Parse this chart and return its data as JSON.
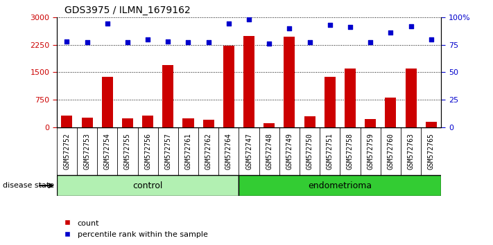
{
  "title": "GDS3975 / ILMN_1679162",
  "samples": [
    "GSM572752",
    "GSM572753",
    "GSM572754",
    "GSM572755",
    "GSM572756",
    "GSM572757",
    "GSM572761",
    "GSM572762",
    "GSM572764",
    "GSM572747",
    "GSM572748",
    "GSM572749",
    "GSM572750",
    "GSM572751",
    "GSM572758",
    "GSM572759",
    "GSM572760",
    "GSM572763",
    "GSM572765"
  ],
  "bar_heights": [
    320,
    260,
    1380,
    250,
    330,
    1700,
    250,
    200,
    2220,
    2480,
    120,
    2470,
    310,
    1370,
    1600,
    230,
    820,
    1600,
    150
  ],
  "dot_percentiles": [
    78,
    77,
    94,
    77,
    80,
    78,
    77,
    77,
    94,
    98,
    76,
    90,
    77,
    93,
    91,
    77,
    86,
    92,
    80
  ],
  "n_control": 9,
  "n_total": 19,
  "ylim_left": [
    0,
    3000
  ],
  "ylim_right": [
    0,
    100
  ],
  "yticks_left": [
    0,
    750,
    1500,
    2250,
    3000
  ],
  "yticks_right": [
    0,
    25,
    50,
    75,
    100
  ],
  "bar_color": "#cc0000",
  "dot_color": "#0000cc",
  "plot_bg_color": "#ffffff",
  "label_bg_color": "#c8c8c8",
  "ctrl_color": "#b2f0b2",
  "endo_color": "#33cc33",
  "legend_labels": [
    "count",
    "percentile rank within the sample"
  ],
  "disease_state_label": "disease state",
  "right_axis_label_color": "#0000cc",
  "left_axis_label_color": "#cc0000",
  "title_fontsize": 10,
  "label_fontsize": 7,
  "group_fontsize": 9
}
